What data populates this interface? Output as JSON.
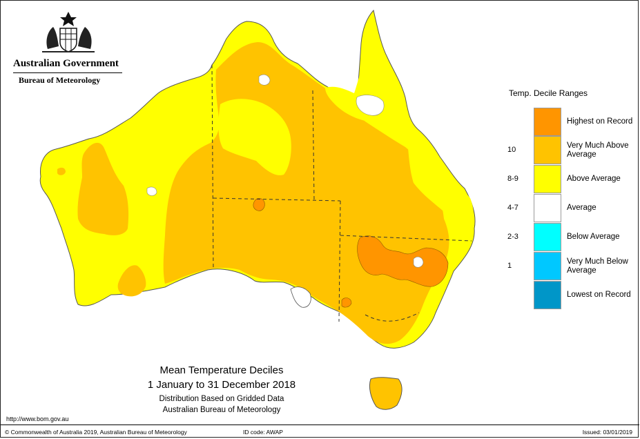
{
  "header": {
    "government": "Australian Government",
    "bureau": "Bureau of Meteorology",
    "crest_icon": "australian-coat-of-arms"
  },
  "map": {
    "title": "Mean Temperature Deciles",
    "period": "1 January to 31 December 2018",
    "subtitle_1": "Distribution Based on Gridded Data",
    "subtitle_2": "Australian Bureau of Meteorology",
    "colors": {
      "highest_on_record": "#FF9500",
      "very_much_above_average": "#FFC300",
      "above_average": "#FFFF00",
      "average": "#FFFFFF",
      "below_average": "#00FFFF",
      "very_much_below_average": "#00C8FF",
      "lowest_on_record": "#0096C8"
    }
  },
  "legend": {
    "title": "Temp. Decile Ranges",
    "rows": [
      {
        "code": "",
        "label": "Highest on Record",
        "color": "#FF9500"
      },
      {
        "code": "10",
        "label": "Very Much Above Average",
        "color": "#FFC300"
      },
      {
        "code": "8-9",
        "label": "Above Average",
        "color": "#FFFF00"
      },
      {
        "code": "4-7",
        "label": "Average",
        "color": "#FFFFFF"
      },
      {
        "code": "2-3",
        "label": "Below Average",
        "color": "#00FFFF"
      },
      {
        "code": "1",
        "label": "Very Much Below Average",
        "color": "#00C8FF"
      },
      {
        "code": "",
        "label": "Lowest on Record",
        "color": "#0096C8"
      }
    ]
  },
  "footer": {
    "url": "http://www.bom.gov.au",
    "copyright": "© Commonwealth of Australia 2019, Australian Bureau of Meteorology",
    "id_code": "ID code: AWAP",
    "issued": "Issued: 03/01/2019"
  }
}
